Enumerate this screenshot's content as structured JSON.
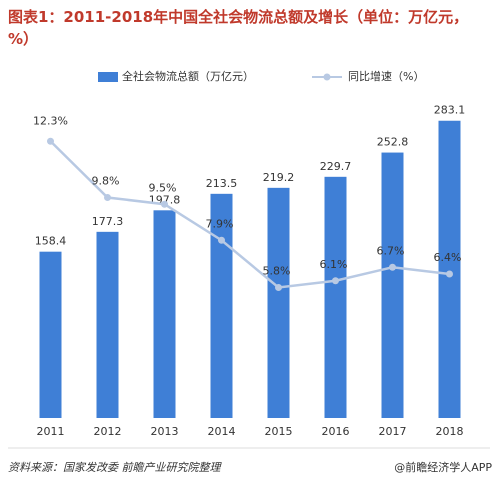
{
  "chart_data": {
    "type": "bar+line",
    "title": "图表1：2011-2018年中国全社会物流总额及增长（单位：万亿元，%）",
    "categories": [
      "2011",
      "2012",
      "2013",
      "2014",
      "2015",
      "2016",
      "2017",
      "2018"
    ],
    "series": [
      {
        "name": "全社会物流总额（万亿元）",
        "type": "bar",
        "color": "#3f7fd6",
        "values": [
          158.4,
          177.3,
          197.8,
          213.5,
          219.2,
          229.7,
          252.8,
          283.1
        ]
      },
      {
        "name": "同比增速（%）",
        "type": "line",
        "axis": "y2",
        "color": "#b8c9e3",
        "values": [
          12.3,
          9.8,
          9.5,
          7.9,
          5.8,
          6.1,
          6.7,
          6.4
        ],
        "value_labels": [
          "12.3%",
          "9.8%",
          "9.5%",
          "7.9%",
          "5.8%",
          "6.1%",
          "6.7%",
          "6.4%"
        ]
      }
    ],
    "ylim": [
      0,
      300
    ],
    "y2lim": [
      0,
      14
    ],
    "source": "资料来源：国家发改委 前瞻产业研究院整理",
    "watermark": "@前瞻经济学人APP"
  }
}
